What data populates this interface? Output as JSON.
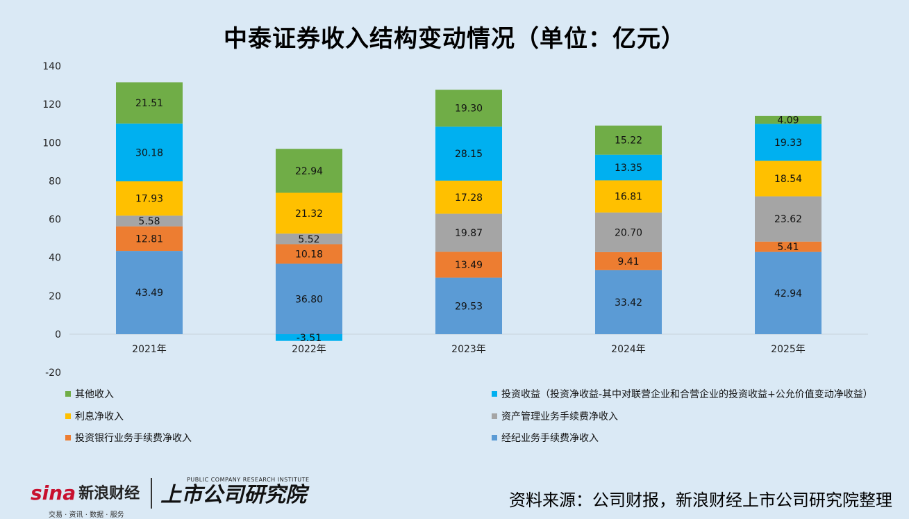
{
  "title": "中泰证券收入结构变动情况（单位：亿元）",
  "chart_data": {
    "type": "bar",
    "stacked": true,
    "title": "中泰证券收入结构变动情况（单位：亿元）",
    "categories": [
      "2021年",
      "2022年",
      "2023年",
      "2024年",
      "2025年"
    ],
    "ylim": [
      -20,
      140
    ],
    "yticks": [
      -20,
      0,
      20,
      40,
      60,
      80,
      100,
      120,
      140
    ],
    "grid": false,
    "series": [
      {
        "name": "经纪业务手续费净收入",
        "color": "#5b9bd5",
        "values": [
          43.49,
          36.8,
          29.53,
          33.42,
          42.94
        ]
      },
      {
        "name": "投资银行业务手续费净收入",
        "color": "#ed7d31",
        "values": [
          12.81,
          10.18,
          13.49,
          9.41,
          5.41
        ]
      },
      {
        "name": "资产管理业务手续费净收入",
        "color": "#a5a5a5",
        "values": [
          5.58,
          5.52,
          19.87,
          20.7,
          23.62
        ]
      },
      {
        "name": "利息净收入",
        "color": "#ffc000",
        "values": [
          17.93,
          21.32,
          17.28,
          16.81,
          18.54
        ]
      },
      {
        "name": "投资收益（投资净收益-其中对联营企业和合营企业的投资收益+公允价值变动净收益）",
        "color": "#00b0f0",
        "values": [
          30.18,
          -3.51,
          28.15,
          13.35,
          19.33
        ]
      },
      {
        "name": "其他收入",
        "color": "#70ad47",
        "values": [
          21.51,
          22.94,
          19.3,
          15.22,
          4.09
        ]
      }
    ],
    "value_labels": [
      [
        "43.49",
        "36.80",
        "29.53",
        "33.42",
        "42.94"
      ],
      [
        "12.81",
        "10.18",
        "13.49",
        "9.41",
        "5.41"
      ],
      [
        "5.58",
        "5.52",
        "19.87",
        "20.70",
        "23.62"
      ],
      [
        "17.93",
        "21.32",
        "17.28",
        "16.81",
        "18.54"
      ],
      [
        "30.18",
        "-3.51",
        "28.15",
        "13.35",
        "19.33"
      ],
      [
        "21.51",
        "22.94",
        "19.30",
        "15.22",
        "4.09"
      ]
    ],
    "legend": {
      "placement": "bottom",
      "items": [
        {
          "label": "其他收入",
          "color": "#70ad47"
        },
        {
          "label": "投资收益（投资净收益-其中对联营企业和合营企业的投资收益+公允价值变动净收益）",
          "color": "#00b0f0"
        },
        {
          "label": "利息净收入",
          "color": "#ffc000"
        },
        {
          "label": "资产管理业务手续费净收入",
          "color": "#a5a5a5"
        },
        {
          "label": "投资银行业务手续费净收入",
          "color": "#ed7d31"
        },
        {
          "label": "经纪业务手续费净收入",
          "color": "#5b9bd5"
        }
      ]
    }
  },
  "footer": {
    "sina_logo_text": "sina",
    "sina_cn": "新浪财经",
    "sina_sub": "交易 · 资讯 · 数据 · 服务",
    "institute_en": "PUBLIC COMPANY RESEARCH INSTITUTE",
    "institute_cn": "上市公司研究院",
    "source": "资料来源：公司财报，新浪财经上市公司研究院整理"
  }
}
